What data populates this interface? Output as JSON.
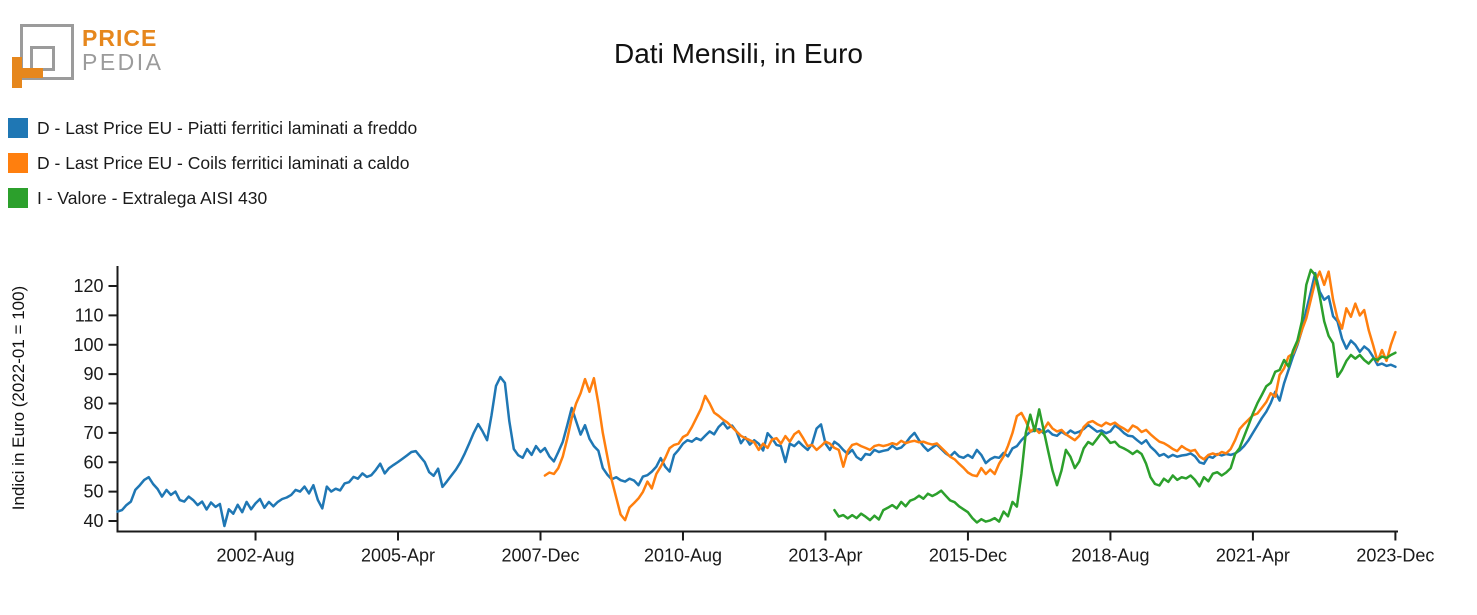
{
  "logo": {
    "top": "PRICE",
    "bottom": "PEDIA",
    "orange": "#e6871d",
    "gray": "#9b9b9b"
  },
  "title": "Dati Mensili, in Euro",
  "legend": [
    {
      "label": "D - Last Price EU - Piatti ferritici laminati a freddo",
      "color": "#1f77b4"
    },
    {
      "label": "D - Last Price EU - Coils ferritici laminati a caldo",
      "color": "#ff7f0e"
    },
    {
      "label": "I - Valore - Extralega AISI 430",
      "color": "#2ca02c"
    }
  ],
  "chart_data": {
    "type": "line",
    "title": "Dati Mensili, in Euro",
    "ylabel": "Indici in Euro (2022-01 = 100)",
    "xlabel": "",
    "grid": false,
    "legend_position": "top-left",
    "x_unit": "months since 2000-01, monthly data 2000-01 to 2023-12",
    "ylim": [
      36.6,
      125.4
    ],
    "xlim_months": [
      0,
      288
    ],
    "y_ticks": [
      40,
      50,
      60,
      70,
      80,
      90,
      100,
      110,
      120
    ],
    "x_ticks": [
      {
        "month": 31,
        "label": "2002-Aug"
      },
      {
        "month": 63,
        "label": "2005-Apr"
      },
      {
        "month": 95,
        "label": "2007-Dec"
      },
      {
        "month": 127,
        "label": "2010-Aug"
      },
      {
        "month": 159,
        "label": "2013-Apr"
      },
      {
        "month": 191,
        "label": "2015-Dec"
      },
      {
        "month": 223,
        "label": "2018-Aug"
      },
      {
        "month": 255,
        "label": "2021-Apr"
      },
      {
        "month": 287,
        "label": "2023-Dec"
      }
    ],
    "series": [
      {
        "name": "D - Last Price EU - Piatti ferritici laminati a freddo",
        "color": "#1f77b4",
        "start_month": 0,
        "start_date": "2000-01",
        "values": [
          43.2,
          43.7,
          45.4,
          46.6,
          50.6,
          52.2,
          54,
          54.9,
          52.6,
          50.9,
          48.3,
          50.6,
          48.9,
          50,
          47.1,
          46.6,
          48.3,
          47.1,
          45.4,
          46.6,
          43.9,
          46.3,
          44.8,
          45.8,
          38.3,
          44,
          42.5,
          45.5,
          43,
          46.5,
          44,
          46,
          47.5,
          44.5,
          46.5,
          45,
          46.5,
          47.5,
          48,
          48.9,
          50.6,
          50,
          51.7,
          49.4,
          52.2,
          47.1,
          44.3,
          51.7,
          50,
          51,
          50.4,
          52.8,
          53.2,
          55,
          54.4,
          56.2,
          55,
          55.6,
          57.4,
          59.5,
          56.2,
          58,
          59.1,
          60.1,
          61.2,
          62.3,
          63.5,
          63.8,
          61.9,
          60.1,
          56.6,
          55.4,
          57.8,
          51.6,
          53.5,
          55.5,
          57.5,
          60,
          63,
          66.5,
          70,
          73,
          70.5,
          67.5,
          76,
          86,
          89,
          87,
          74,
          64.5,
          62.4,
          61.5,
          64.5,
          62.5,
          65.5,
          63.5,
          64.8,
          62,
          60.3,
          63.5,
          67,
          72.5,
          78.5,
          74,
          69.4,
          72.6,
          68,
          65.5,
          63.9,
          58,
          55.8,
          54.2,
          54.9,
          53.9,
          53.4,
          54.4,
          53.8,
          52.2,
          55.1,
          55.6,
          56.8,
          58.5,
          61.4,
          58.5,
          56.8,
          62.5,
          64.2,
          66.3,
          67.5,
          67,
          68.2,
          67.5,
          69,
          70.5,
          69.5,
          72,
          73.5,
          71.5,
          72.5,
          70.5,
          66.5,
          68.5,
          66,
          67.5,
          66.3,
          64,
          69.9,
          68.2,
          65.9,
          65.5,
          60.1,
          66.3,
          65.5,
          67,
          65.5,
          64.2,
          66.3,
          71.5,
          72.9,
          66.3,
          64.2,
          67,
          65.9,
          64.2,
          62.8,
          64.2,
          61.8,
          60.8,
          62.8,
          62.5,
          64.2,
          63.5,
          63.9,
          64.2,
          65.6,
          64.5,
          65,
          66.5,
          68.5,
          70,
          67.5,
          65.5,
          63.9,
          65,
          66,
          64.5,
          63,
          62,
          63.5,
          62,
          61.5,
          62.5,
          61.5,
          64.2,
          62.5,
          59.7,
          61,
          61.8,
          61.5,
          63.2,
          62,
          64.7,
          65.5,
          67.5,
          69,
          70.4,
          70.8,
          71.3,
          69.9,
          70.8,
          69.4,
          69,
          70.4,
          69.4,
          70.8,
          69.9,
          70.4,
          71.3,
          72.7,
          71.6,
          70.4,
          70.8,
          69.9,
          70.5,
          72.5,
          71.5,
          70,
          69,
          68.8,
          67.5,
          66.3,
          67.5,
          65.3,
          63.9,
          62.2,
          62.8,
          61.7,
          62.5,
          61.9,
          62.3,
          62.5,
          63,
          62,
          60,
          59.5,
          62,
          61.5,
          62.8,
          62.3,
          62.8,
          62.5,
          63,
          64,
          65.5,
          67.5,
          70,
          72.5,
          75,
          77.2,
          80.1,
          84,
          81,
          86.9,
          91.4,
          96,
          99.9,
          105,
          111.8,
          118,
          124.4,
          118.1,
          115.3,
          116.5,
          109.7,
          108,
          102.1,
          98.7,
          101.4,
          100,
          97.6,
          99.4,
          98.2,
          95.9,
          93.1,
          93.6,
          92.8,
          93.2,
          92.5
        ]
      },
      {
        "name": "D - Last Price EU - Coils ferritici laminati a caldo",
        "color": "#ff7f0e",
        "start_month": 96,
        "start_date": "2008-01",
        "values": [
          55.5,
          56.5,
          56,
          58,
          62,
          68,
          75,
          80,
          83.5,
          88.3,
          84,
          88.6,
          80,
          70,
          62,
          54,
          48,
          42.2,
          40.3,
          44.6,
          46.1,
          47.7,
          49.9,
          53.4,
          51.1,
          56,
          58.5,
          61.4,
          64.8,
          65.9,
          66.3,
          68.6,
          69.4,
          72,
          75,
          78.1,
          82.6,
          80,
          76.9,
          75.8,
          74.5,
          73.5,
          72,
          70.5,
          69,
          68.2,
          67.5,
          66.8,
          64.2,
          66.3,
          64.9,
          67.7,
          68.2,
          66.3,
          68.9,
          67,
          69.5,
          70.6,
          68.2,
          65.5,
          65.9,
          64.2,
          65.5,
          67,
          66.3,
          64.9,
          64.2,
          58.5,
          63.8,
          65.9,
          66.3,
          65.5,
          64.9,
          64.2,
          65.5,
          65.9,
          65.5,
          65.9,
          66.5,
          66,
          67.3,
          66.5,
          67,
          67.3,
          66.8,
          67,
          66.4,
          66,
          66.4,
          65,
          63.5,
          61.9,
          61,
          59.5,
          58.1,
          56.5,
          55.6,
          55.3,
          58,
          56,
          57.5,
          56,
          59.5,
          62,
          65.6,
          70,
          75.7,
          76.8,
          74,
          70.4,
          71.6,
          70,
          71,
          73.5,
          71.5,
          70.5,
          71,
          69.5,
          68.5,
          67.5,
          69,
          72,
          73.5,
          74,
          73,
          72.3,
          73.5,
          72.8,
          73.5,
          72.3,
          71.5,
          70.5,
          72.5,
          71.8,
          70.3,
          71,
          69.5,
          68.2,
          67,
          66.5,
          65.6,
          64.5,
          63.8,
          65.5,
          64.5,
          63.8,
          64.2,
          62,
          61,
          62.5,
          63,
          62.5,
          63.5,
          63,
          64.5,
          67.5,
          71.3,
          73,
          74.5,
          76,
          76.6,
          78.5,
          80.5,
          83.5,
          82.3,
          89.7,
          92,
          96,
          97,
          100.5,
          105,
          109,
          115.3,
          121.5,
          124.9,
          120.4,
          124.9,
          115.3,
          108.9,
          105.5,
          112.4,
          109.5,
          114,
          110,
          111.8,
          105,
          99.9,
          94.3,
          98.2,
          94.5,
          100,
          104.3
        ]
      },
      {
        "name": "I - Valore - Extralega AISI 430",
        "color": "#2ca02c",
        "start_month": 161,
        "start_date": "2013-06",
        "values": [
          43.7,
          41.5,
          42,
          40.9,
          42,
          41,
          42.5,
          41.5,
          40.3,
          41.8,
          40.5,
          43.7,
          44.5,
          45.4,
          44.3,
          46.5,
          45,
          46.9,
          47.5,
          48.6,
          47.6,
          49.3,
          48.5,
          49.3,
          50.3,
          48.6,
          47,
          46.4,
          45,
          44,
          43,
          41,
          39.5,
          40.6,
          39.8,
          40.2,
          41,
          39.8,
          43.2,
          41.6,
          46.5,
          44.9,
          56,
          70,
          76.2,
          70.6,
          78,
          71,
          63.9,
          57.2,
          52.2,
          57.2,
          64.2,
          61.9,
          58,
          60.3,
          64.7,
          66.9,
          66,
          68,
          70,
          68.4,
          66.6,
          67,
          65.4,
          64.7,
          63.9,
          62.8,
          63.9,
          62.8,
          59.5,
          54.9,
          52.6,
          52.1,
          54.4,
          53.3,
          55.5,
          54,
          54.9,
          54.5,
          55.5,
          54,
          51.8,
          54.9,
          53.5,
          56.1,
          56.6,
          55.5,
          56.5,
          58,
          62.8,
          64.8,
          68.7,
          72.6,
          76.6,
          80.1,
          82.9,
          85.9,
          87,
          90.8,
          91.4,
          94.8,
          92.6,
          98,
          101.4,
          108,
          120.4,
          125.5,
          123.7,
          116.6,
          108,
          103,
          100.5,
          89.1,
          91.4,
          94.5,
          96.5,
          95.3,
          96.5,
          94.8,
          93.6,
          95.3,
          94.8,
          96,
          95.5,
          96.5,
          97.3
        ]
      }
    ]
  }
}
